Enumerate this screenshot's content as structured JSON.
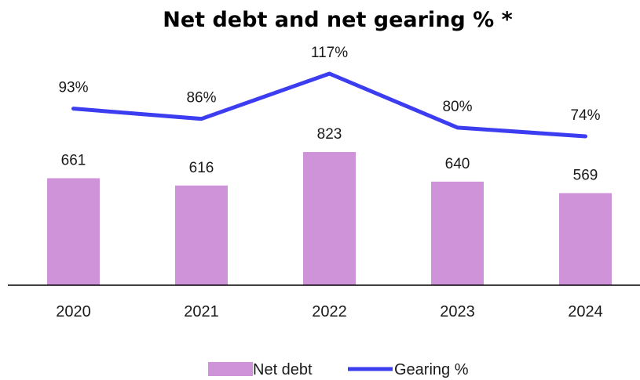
{
  "chart_data": {
    "type": "bar",
    "title": "Net debt and net gearing % *",
    "categories": [
      "2020",
      "2021",
      "2022",
      "2023",
      "2024"
    ],
    "series": [
      {
        "name": "Net debt",
        "type": "bar",
        "values": [
          661,
          616,
          823,
          640,
          569
        ],
        "labels": [
          "661",
          "616",
          "823",
          "640",
          "569"
        ]
      },
      {
        "name": "Gearing %",
        "type": "line",
        "values": [
          93,
          86,
          117,
          80,
          74
        ],
        "labels": [
          "93%",
          "86%",
          "117%",
          "80%",
          "74%"
        ]
      }
    ],
    "legend_position": "bottom",
    "grid": false,
    "colors": {
      "bar": "#cf93d9",
      "line": "#3c3cf0",
      "axis": "#000000"
    }
  }
}
